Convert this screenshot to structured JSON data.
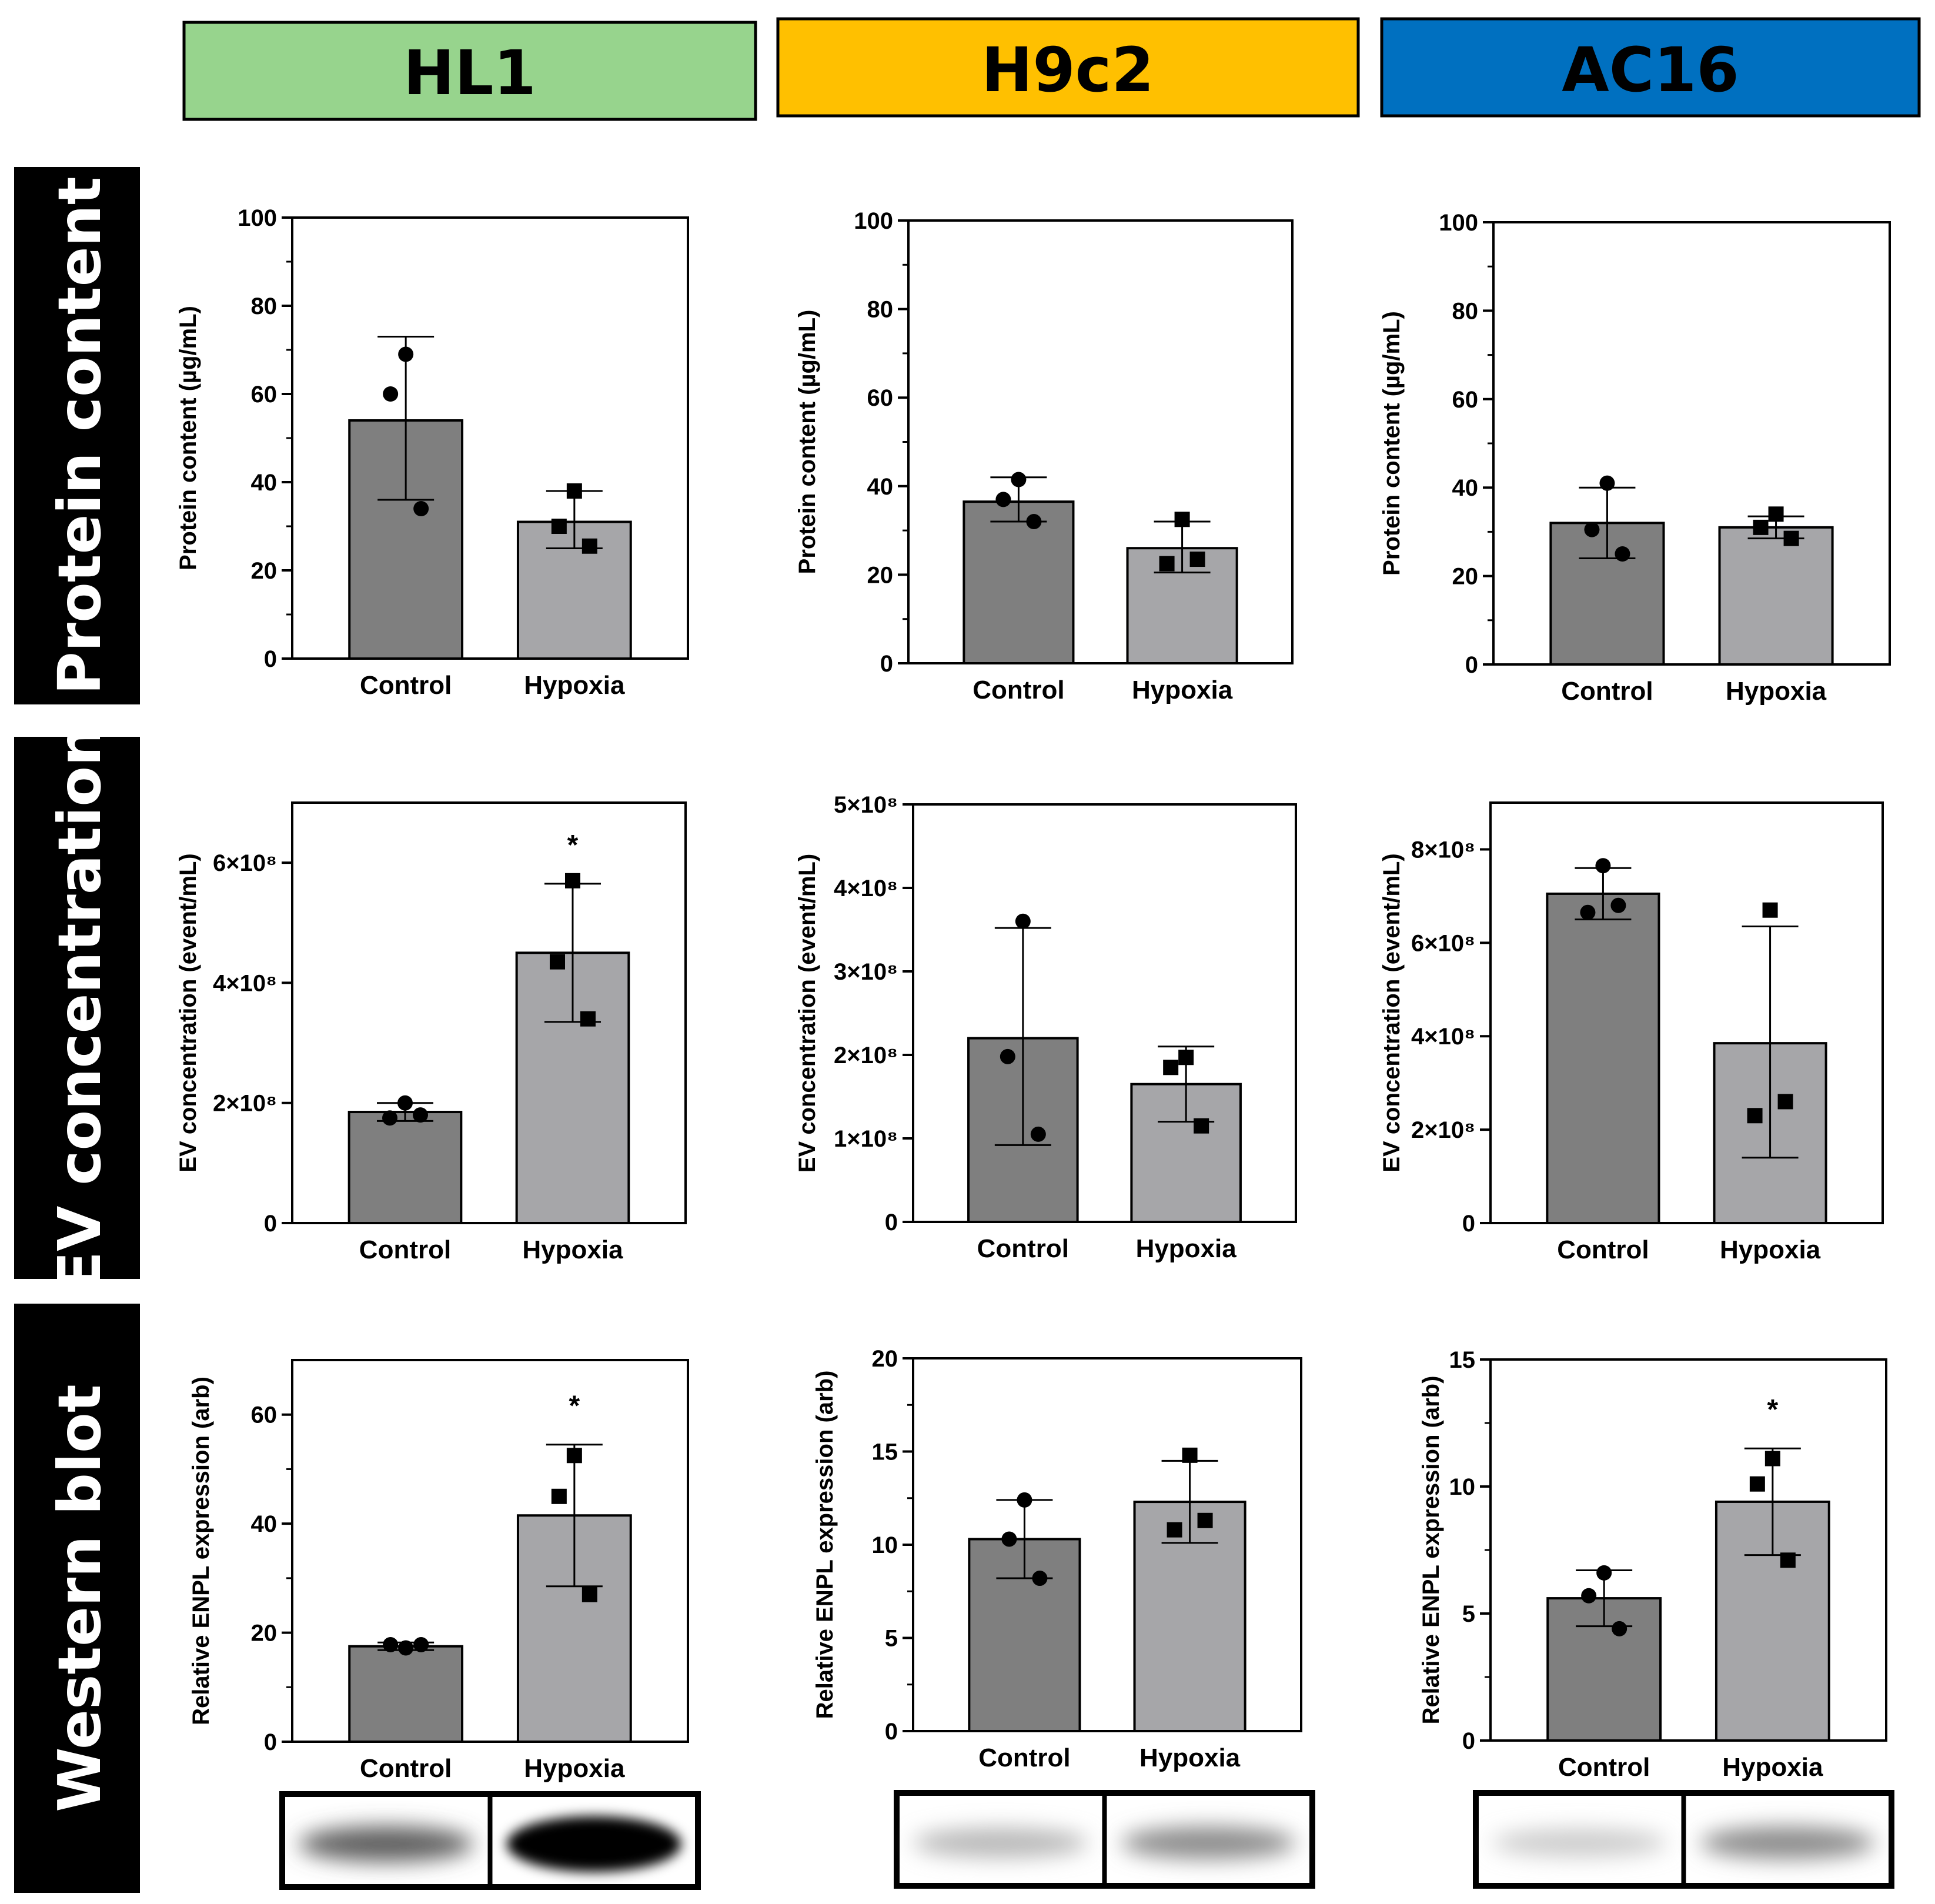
{
  "colors": {
    "hl1": "#97d48d",
    "h9c2": "#ffc000",
    "ac16": "#0070c0",
    "control_bar": "#7f7f7f",
    "hypoxia_bar": "#a6a6a9",
    "row_label_bg": "#000000"
  },
  "headers": [
    "HL1",
    "H9c2",
    "AC16"
  ],
  "row_labels": [
    "Protein content",
    "EV concentration",
    "Western blot"
  ],
  "chart_data": [
    {
      "type": "bar",
      "row": 0,
      "col": 0,
      "ylabel": "Protein content (µg/mL)",
      "categories": [
        "Control",
        "Hypoxia"
      ],
      "values": [
        54,
        31
      ],
      "error": [
        [
          36,
          73
        ],
        [
          25,
          38
        ]
      ],
      "points": [
        [
          69,
          60,
          34
        ],
        [
          38,
          30,
          25.5
        ]
      ],
      "ylim": [
        0,
        100
      ],
      "yticks": [
        0,
        20,
        40,
        60,
        80,
        100
      ],
      "tick_labels": [
        "0",
        "20",
        "40",
        "60",
        "80",
        "100"
      ],
      "minor_ticks": true,
      "significance": [
        "",
        ""
      ]
    },
    {
      "type": "bar",
      "row": 0,
      "col": 1,
      "ylabel": "Protein content (µg/mL)",
      "categories": [
        "Control",
        "Hypoxia"
      ],
      "values": [
        36.5,
        26
      ],
      "error": [
        [
          32,
          42
        ],
        [
          20.5,
          32
        ]
      ],
      "points": [
        [
          41.5,
          37,
          32
        ],
        [
          32.5,
          22.5,
          23.5
        ]
      ],
      "ylim": [
        0,
        100
      ],
      "yticks": [
        0,
        20,
        40,
        60,
        80,
        100
      ],
      "tick_labels": [
        "0",
        "20",
        "40",
        "60",
        "80",
        "100"
      ],
      "minor_ticks": true,
      "significance": [
        "",
        ""
      ]
    },
    {
      "type": "bar",
      "row": 0,
      "col": 2,
      "ylabel": "Protein content (µg/mL)",
      "categories": [
        "Control",
        "Hypoxia"
      ],
      "values": [
        32,
        31
      ],
      "error": [
        [
          24,
          40
        ],
        [
          28.5,
          33.5
        ]
      ],
      "points": [
        [
          41,
          30.5,
          25
        ],
        [
          34,
          31,
          28.5
        ]
      ],
      "ylim": [
        0,
        100
      ],
      "yticks": [
        0,
        20,
        40,
        60,
        80,
        100
      ],
      "tick_labels": [
        "0",
        "20",
        "40",
        "60",
        "80",
        "100"
      ],
      "minor_ticks": true,
      "significance": [
        "",
        ""
      ]
    },
    {
      "type": "bar",
      "row": 1,
      "col": 0,
      "ylabel": "EV concentration (event/mL)",
      "categories": [
        "Control",
        "Hypoxia"
      ],
      "values": [
        185000000.0,
        450000000.0
      ],
      "error": [
        [
          170000000.0,
          200000000.0
        ],
        [
          335000000.0,
          565000000.0
        ]
      ],
      "points": [
        [
          200000000.0,
          175000000.0,
          180000000.0
        ],
        [
          570000000.0,
          435000000.0,
          340000000.0
        ]
      ],
      "ylim": [
        0,
        700000000.0
      ],
      "yticks": [
        0,
        200000000.0,
        400000000.0,
        600000000.0
      ],
      "tick_labels": [
        "0",
        "2×10⁸",
        "4×10⁸",
        "6×10⁸"
      ],
      "minor_ticks": false,
      "significance": [
        "",
        "*"
      ]
    },
    {
      "type": "bar",
      "row": 1,
      "col": 1,
      "ylabel": "EV concentration (event/mL)",
      "categories": [
        "Control",
        "Hypoxia"
      ],
      "values": [
        220000000.0,
        165000000.0
      ],
      "error": [
        [
          92000000.0,
          352000000.0
        ],
        [
          120000000.0,
          210000000.0
        ]
      ],
      "points": [
        [
          360000000.0,
          198000000.0,
          105000000.0
        ],
        [
          197000000.0,
          185000000.0,
          115000000.0
        ]
      ],
      "ylim": [
        0,
        500000000.0
      ],
      "yticks": [
        0,
        100000000.0,
        200000000.0,
        300000000.0,
        400000000.0,
        500000000.0
      ],
      "tick_labels": [
        "0",
        "1×10⁸",
        "2×10⁸",
        "3×10⁸",
        "4×10⁸",
        "5×10⁸"
      ],
      "minor_ticks": false,
      "significance": [
        "",
        ""
      ]
    },
    {
      "type": "bar",
      "row": 1,
      "col": 2,
      "ylabel": "EV concentration (event/mL)",
      "categories": [
        "Control",
        "Hypoxia"
      ],
      "values": [
        705000000.0,
        385000000.0
      ],
      "error": [
        [
          650000000.0,
          760000000.0
        ],
        [
          140000000.0,
          635000000.0
        ]
      ],
      "points": [
        [
          765000000.0,
          665000000.0,
          680000000.0
        ],
        [
          670000000.0,
          230000000.0,
          260000000.0
        ]
      ],
      "ylim": [
        0,
        900000000.0
      ],
      "yticks": [
        0,
        200000000.0,
        400000000.0,
        600000000.0,
        800000000.0
      ],
      "tick_labels": [
        "0",
        "2×10⁸",
        "4×10⁸",
        "6×10⁸",
        "8×10⁸"
      ],
      "minor_ticks": false,
      "significance": [
        "",
        ""
      ]
    },
    {
      "type": "bar",
      "row": 2,
      "col": 0,
      "ylabel": "Relative ENPL expression (arb)",
      "categories": [
        "Control",
        "Hypoxia"
      ],
      "values": [
        17.5,
        41.5
      ],
      "error": [
        [
          16.8,
          18.2
        ],
        [
          28.5,
          54.5
        ]
      ],
      "points": [
        [
          17.2,
          17.8,
          17.8
        ],
        [
          52.5,
          45,
          27
        ]
      ],
      "ylim": [
        0,
        70
      ],
      "yticks": [
        0,
        20,
        40,
        60
      ],
      "tick_labels": [
        "0",
        "20",
        "40",
        "60"
      ],
      "minor_ticks": true,
      "significance": [
        "",
        "*"
      ]
    },
    {
      "type": "bar",
      "row": 2,
      "col": 1,
      "ylabel": "Relative ENPL expression (arb)",
      "categories": [
        "Control",
        "Hypoxia"
      ],
      "values": [
        10.3,
        12.3
      ],
      "error": [
        [
          8.2,
          12.4
        ],
        [
          10.1,
          14.5
        ]
      ],
      "points": [
        [
          12.4,
          10.3,
          8.2
        ],
        [
          14.8,
          10.8,
          11.3
        ]
      ],
      "ylim": [
        0,
        20
      ],
      "yticks": [
        0,
        5,
        10,
        15,
        20
      ],
      "tick_labels": [
        "0",
        "5",
        "10",
        "15",
        "20"
      ],
      "minor_ticks": true,
      "significance": [
        "",
        ""
      ]
    },
    {
      "type": "bar",
      "row": 2,
      "col": 2,
      "ylabel": "Relative ENPL expression (arb)",
      "categories": [
        "Control",
        "Hypoxia"
      ],
      "values": [
        5.6,
        9.4
      ],
      "error": [
        [
          4.5,
          6.7
        ],
        [
          7.3,
          11.5
        ]
      ],
      "points": [
        [
          6.6,
          5.7,
          4.4
        ],
        [
          11.1,
          10.1,
          7.1
        ]
      ],
      "ylim": [
        0,
        15
      ],
      "yticks": [
        0,
        5,
        10,
        15
      ],
      "tick_labels": [
        "0",
        "5",
        "10",
        "15"
      ],
      "minor_ticks": true,
      "significance": [
        "",
        "*"
      ]
    }
  ],
  "blots": [
    {
      "col": 0,
      "control_intensity": 0.62,
      "hypoxia_intensity": 1.0
    },
    {
      "col": 1,
      "control_intensity": 0.28,
      "hypoxia_intensity": 0.45
    },
    {
      "col": 2,
      "control_intensity": 0.2,
      "hypoxia_intensity": 0.45
    }
  ]
}
